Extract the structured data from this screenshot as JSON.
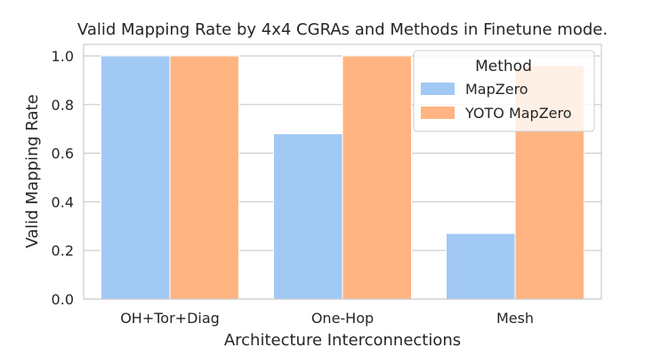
{
  "chart_data": {
    "type": "bar",
    "title": "Valid Mapping Rate by 4x4 CGRAs and Methods in Finetune mode.",
    "xlabel": "Architecture Interconnections",
    "ylabel": "Valid Mapping Rate",
    "categories": [
      "OH+Tor+Diag",
      "One-Hop",
      "Mesh"
    ],
    "series": [
      {
        "name": "MapZero",
        "values": [
          1.0,
          0.68,
          0.27
        ],
        "color": "#a1c9f4"
      },
      {
        "name": "YOTO MapZero",
        "values": [
          1.0,
          1.0,
          0.96
        ],
        "color": "#ffb482"
      }
    ],
    "ylim": [
      0,
      1.0
    ],
    "yticks": [
      "0.0",
      "0.2",
      "0.4",
      "0.6",
      "0.8",
      "1.0"
    ],
    "grid": "horizontal",
    "legend": {
      "title": "Method",
      "position": "top-right"
    }
  }
}
